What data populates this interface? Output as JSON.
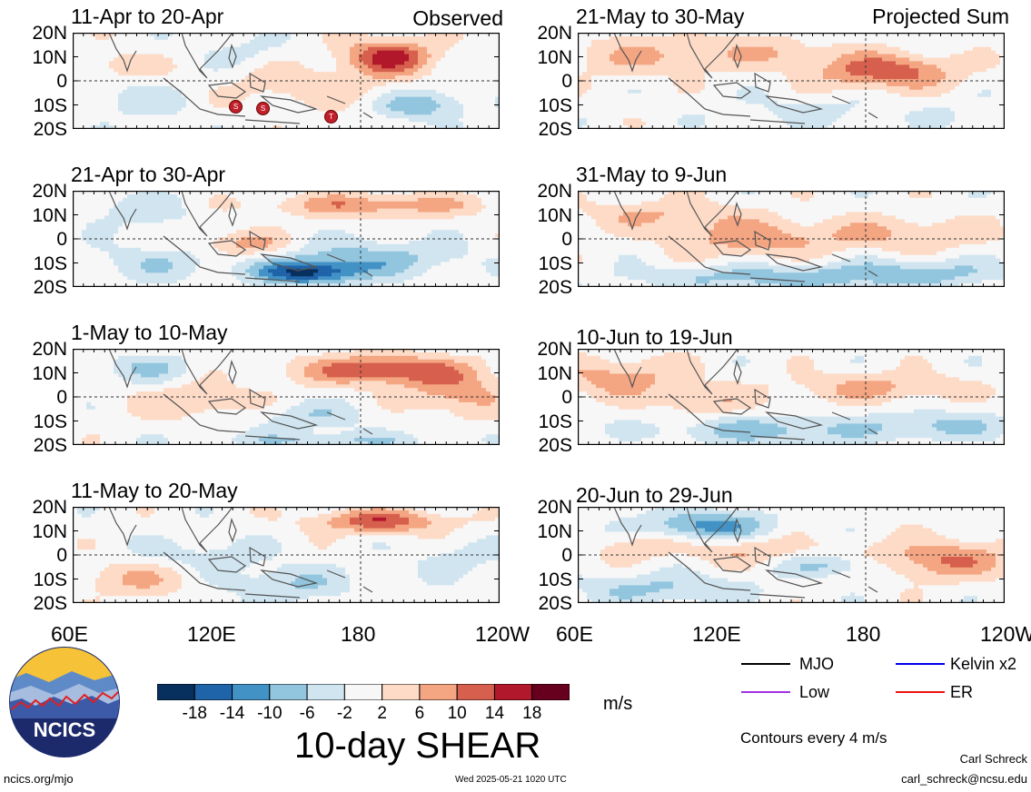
{
  "columns": [
    {
      "label": "Observed"
    },
    {
      "label": "Projected Sum"
    }
  ],
  "panels": [
    {
      "title": "11-Apr to 20-Apr"
    },
    {
      "title": "21-May to 30-May"
    },
    {
      "title": "21-Apr to 30-Apr"
    },
    {
      "title": "31-May to 9-Jun"
    },
    {
      "title": "1-May to 10-May"
    },
    {
      "title": "10-Jun to 19-Jun"
    },
    {
      "title": "11-May to 20-May"
    },
    {
      "title": "20-Jun to 29-Jun"
    }
  ],
  "lat_labels": [
    "20N",
    "10N",
    "0",
    "10S",
    "20S"
  ],
  "lon_labels": [
    "60E",
    "120E",
    "180",
    "120W"
  ],
  "storm_markers": [
    "S",
    "S",
    "T"
  ],
  "colorbar": {
    "ticks": [
      "-18",
      "-14",
      "-10",
      "-6",
      "-2",
      "2",
      "6",
      "10",
      "14",
      "18"
    ],
    "colors": [
      "#08305e",
      "#1f63a8",
      "#4292c6",
      "#92c5de",
      "#d1e5f0",
      "#f7f7f7",
      "#fddbc7",
      "#f4a582",
      "#d6604d",
      "#b2182b",
      "#67001f"
    ],
    "unit": "m/s",
    "title": "10-day SHEAR"
  },
  "legend": {
    "items": [
      {
        "label": "MJO",
        "color": "#000000"
      },
      {
        "label": "Kelvin x2",
        "color": "#0000ee"
      },
      {
        "label": "Low",
        "color": "#a030e0"
      },
      {
        "label": "ER",
        "color": "#ee1111"
      }
    ],
    "contours": "Contours every 4 m/s"
  },
  "logo_text": "NCICS",
  "footer": {
    "url": "ncics.org/mjo",
    "timestamp": "Wed 2025-05-21 1020 UTC",
    "author": "Carl Schreck",
    "email": "carl_schreck@ncsu.edu"
  }
}
